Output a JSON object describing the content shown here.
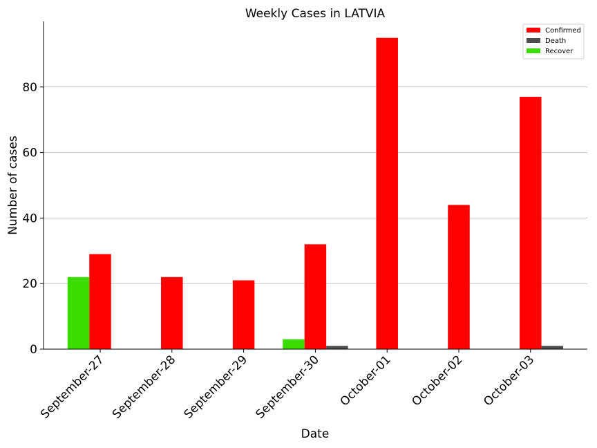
{
  "chart_data": {
    "type": "bar",
    "title": "Weekly Cases in LATVIA",
    "xlabel": "Date",
    "ylabel": "Number of cases",
    "categories": [
      "September-27",
      "September-28",
      "September-29",
      "September-30",
      "October-01",
      "October-02",
      "October-03"
    ],
    "series": [
      {
        "name": "Confirmed",
        "color": "#ff0000",
        "values": [
          29,
          22,
          21,
          32,
          95,
          44,
          77
        ]
      },
      {
        "name": "Death",
        "color": "#4d4d4d",
        "values": [
          0,
          0,
          0,
          1,
          0,
          0,
          1
        ]
      },
      {
        "name": "Recover",
        "color": "#3cdc00",
        "values": [
          22,
          0,
          0,
          3,
          0,
          0,
          0
        ]
      }
    ],
    "ylim": [
      0,
      100
    ],
    "yticks": [
      0,
      20,
      40,
      60,
      80
    ],
    "grid": "horizontal",
    "legend_position": "top-right"
  }
}
